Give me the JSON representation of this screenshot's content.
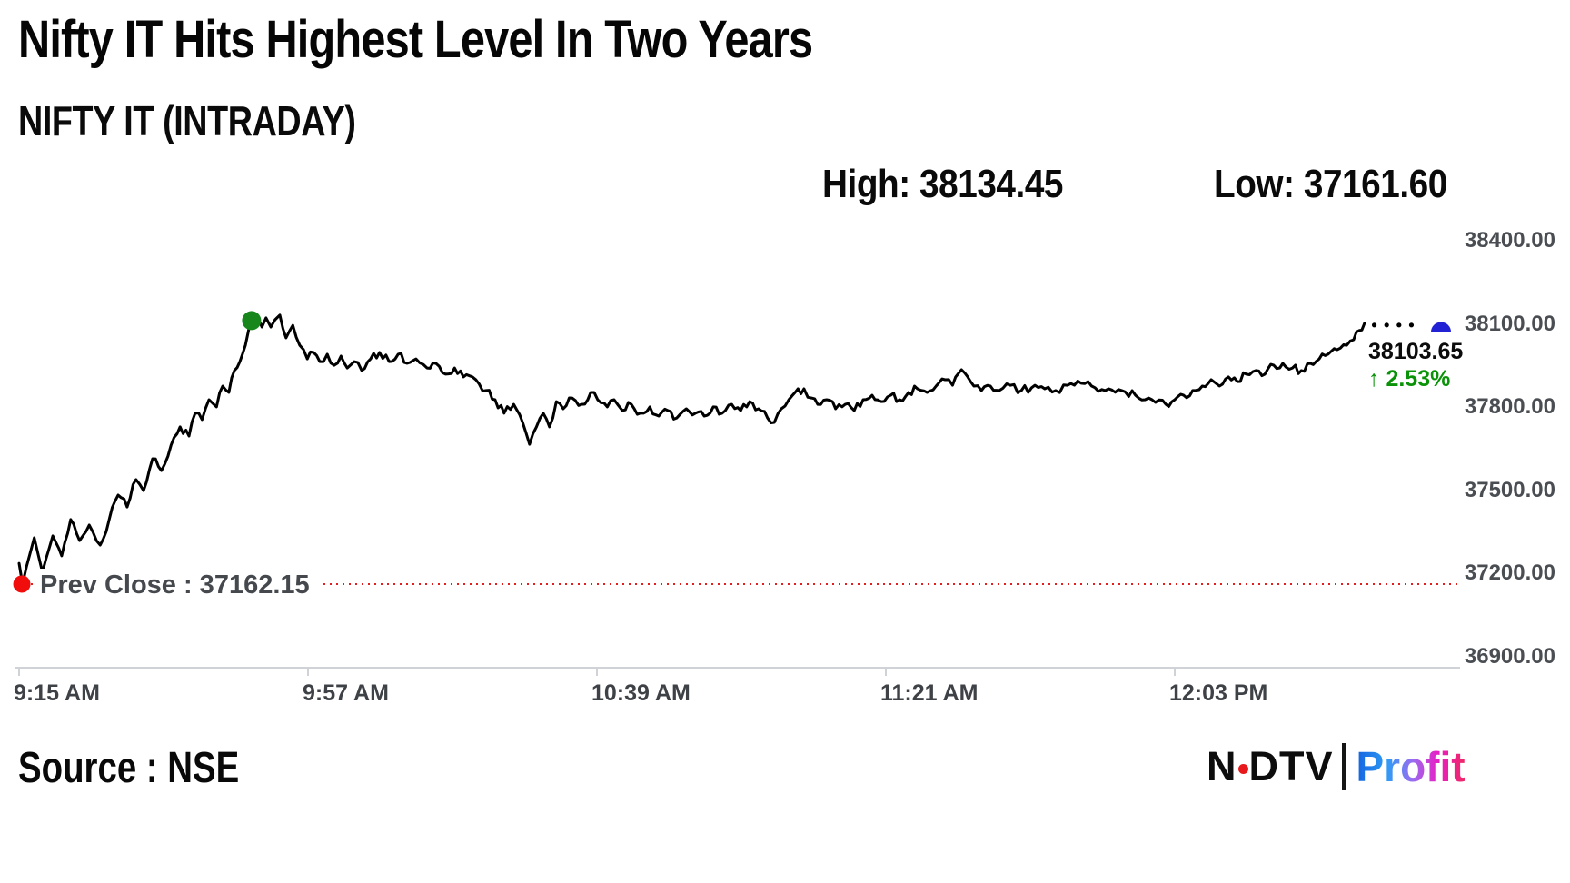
{
  "header": {
    "title": "Nifty IT Hits Highest Level In Two Years",
    "subtitle": "NIFTY IT (INTRADAY)",
    "high_text": "High: 38134.45",
    "low_text": "Low: 37161.60"
  },
  "footer": {
    "source": "Source : NSE",
    "logo": {
      "n": "N",
      "dtv": "DTV",
      "profit": "Profit"
    }
  },
  "chart_data": {
    "type": "line",
    "title": "NIFTY IT (INTRADAY)",
    "high": 38134.45,
    "low": 37161.6,
    "prev_close": {
      "label": "Prev Close : 37162.15",
      "value": 37162.15
    },
    "last": {
      "value": 38103.65,
      "text": "38103.65",
      "change_pct": 2.53,
      "change_pct_text": "↑ 2.53%"
    },
    "x_axis": {
      "tick_minutes": [
        0,
        42,
        84,
        126,
        168
      ],
      "tick_labels": [
        "9:15 AM",
        "9:57 AM",
        "10:39 AM",
        "11:21 AM",
        "12:03 PM"
      ],
      "range_minutes": [
        0,
        210
      ]
    },
    "y_axis": {
      "ticks": [
        38400,
        38100,
        37800,
        37500,
        37200,
        36900
      ],
      "tick_labels": [
        "38400.00",
        "38100.00",
        "37800.00",
        "37500.00",
        "37200.00",
        "36900.00"
      ],
      "range": [
        36900,
        38400
      ]
    },
    "legend": "none",
    "grid": "off",
    "colors": {
      "line": "#000000",
      "prev_close_line": "#e02020",
      "axis": "#cfd2d6",
      "open_dot": "#f20d0d",
      "high_dot": "#17871c",
      "last_dot": "#2222d4",
      "pct_text": "#0a9308"
    },
    "markers": {
      "open_dot": {
        "t": 0.4,
        "v": 37162.15
      },
      "high_dot": {
        "t": 33.8,
        "v": 38112
      },
      "last_dot": {
        "t": 206.7,
        "v": 38103.65
      },
      "trail_dots_t": [
        197.0,
        198.8,
        200.6,
        202.4
      ],
      "trail_dots_v": 38096
    },
    "series": [
      {
        "name": "NIFTY IT",
        "points": [
          [
            0,
            37237
          ],
          [
            0.5,
            37162
          ],
          [
            2.2,
            37329
          ],
          [
            3.4,
            37205
          ],
          [
            4.9,
            37336
          ],
          [
            6.2,
            37264
          ],
          [
            7.5,
            37395
          ],
          [
            8.8,
            37319
          ],
          [
            10.2,
            37375
          ],
          [
            11.8,
            37303
          ],
          [
            13.1,
            37395
          ],
          [
            14.4,
            37483
          ],
          [
            15.7,
            37440
          ],
          [
            17,
            37539
          ],
          [
            18.1,
            37499
          ],
          [
            19.4,
            37614
          ],
          [
            20.7,
            37571
          ],
          [
            22.1,
            37663
          ],
          [
            23.4,
            37729
          ],
          [
            24.7,
            37696
          ],
          [
            25.6,
            37778
          ],
          [
            26.6,
            37755
          ],
          [
            27.6,
            37827
          ],
          [
            28.7,
            37801
          ],
          [
            29.6,
            37876
          ],
          [
            30.5,
            37853
          ],
          [
            31.3,
            37932
          ],
          [
            32.1,
            37964
          ],
          [
            32.9,
            38023
          ],
          [
            33.4,
            38082
          ],
          [
            33.9,
            38109
          ],
          [
            34.6,
            38128
          ],
          [
            35.3,
            38089
          ],
          [
            35.9,
            38122
          ],
          [
            36.6,
            38089
          ],
          [
            37.2,
            38115
          ],
          [
            37.9,
            38132
          ],
          [
            38.8,
            38050
          ],
          [
            39.8,
            38095
          ],
          [
            40.8,
            38023
          ],
          [
            41.9,
            37974
          ],
          [
            42.8,
            37997
          ],
          [
            43.7,
            37964
          ],
          [
            44.8,
            37991
          ],
          [
            45.8,
            37951
          ],
          [
            46.8,
            37984
          ],
          [
            47.7,
            37941
          ],
          [
            48.7,
            37964
          ],
          [
            49.8,
            37932
          ],
          [
            51.1,
            37974
          ],
          [
            52.4,
            37997
          ],
          [
            53.8,
            37964
          ],
          [
            55.1,
            37991
          ],
          [
            56.4,
            37958
          ],
          [
            57.7,
            37974
          ],
          [
            59.3,
            37941
          ],
          [
            60.6,
            37958
          ],
          [
            62,
            37919
          ],
          [
            63.3,
            37941
          ],
          [
            64.6,
            37909
          ],
          [
            65.9,
            37909
          ],
          [
            67.9,
            37860
          ],
          [
            69.2,
            37827
          ],
          [
            70.5,
            37778
          ],
          [
            71.9,
            37810
          ],
          [
            73.2,
            37745
          ],
          [
            74.2,
            37666
          ],
          [
            75.2,
            37729
          ],
          [
            76.2,
            37778
          ],
          [
            77.1,
            37729
          ],
          [
            78.1,
            37820
          ],
          [
            79.1,
            37794
          ],
          [
            80.4,
            37833
          ],
          [
            81.8,
            37810
          ],
          [
            83.1,
            37853
          ],
          [
            84.1,
            37827
          ],
          [
            85.5,
            37801
          ],
          [
            86.5,
            37827
          ],
          [
            87.7,
            37788
          ],
          [
            89,
            37810
          ],
          [
            90.3,
            37778
          ],
          [
            91.7,
            37801
          ],
          [
            93,
            37768
          ],
          [
            94.3,
            37788
          ],
          [
            95.6,
            37761
          ],
          [
            97,
            37794
          ],
          [
            98.3,
            37778
          ],
          [
            99.6,
            37768
          ],
          [
            100.9,
            37801
          ],
          [
            102.2,
            37778
          ],
          [
            103.6,
            37810
          ],
          [
            104.9,
            37788
          ],
          [
            106.2,
            37820
          ],
          [
            107.5,
            37794
          ],
          [
            108.8,
            37761
          ],
          [
            109.8,
            37745
          ],
          [
            110.8,
            37794
          ],
          [
            111.9,
            37827
          ],
          [
            112.8,
            37853
          ],
          [
            114.1,
            37866
          ],
          [
            115.2,
            37833
          ],
          [
            116.1,
            37810
          ],
          [
            117.4,
            37827
          ],
          [
            118.7,
            37794
          ],
          [
            120.1,
            37810
          ],
          [
            121.4,
            37788
          ],
          [
            122.7,
            37827
          ],
          [
            124,
            37843
          ],
          [
            125.3,
            37820
          ],
          [
            126.7,
            37843
          ],
          [
            128,
            37827
          ],
          [
            129.3,
            37853
          ],
          [
            130.6,
            37866
          ],
          [
            132,
            37853
          ],
          [
            133.3,
            37876
          ],
          [
            134.6,
            37899
          ],
          [
            135.7,
            37879
          ],
          [
            137,
            37935
          ],
          [
            137.9,
            37909
          ],
          [
            138.8,
            37876
          ],
          [
            139.9,
            37860
          ],
          [
            141.2,
            37876
          ],
          [
            142.5,
            37860
          ],
          [
            144.1,
            37879
          ],
          [
            145.7,
            37860
          ],
          [
            147.2,
            37870
          ],
          [
            149.1,
            37866
          ],
          [
            150.7,
            37860
          ],
          [
            152.4,
            37879
          ],
          [
            154.4,
            37886
          ],
          [
            156.4,
            37870
          ],
          [
            158.4,
            37866
          ],
          [
            160.3,
            37860
          ],
          [
            162.3,
            37843
          ],
          [
            163.7,
            37827
          ],
          [
            165.2,
            37817
          ],
          [
            166.7,
            37810
          ],
          [
            168,
            37827
          ],
          [
            169.3,
            37843
          ],
          [
            170.6,
            37860
          ],
          [
            172,
            37876
          ],
          [
            173.3,
            37899
          ],
          [
            174.5,
            37876
          ],
          [
            175.8,
            37909
          ],
          [
            177.1,
            37892
          ],
          [
            178.4,
            37919
          ],
          [
            179.8,
            37932
          ],
          [
            181.1,
            37919
          ],
          [
            182.4,
            37951
          ],
          [
            183.7,
            37958
          ],
          [
            185.1,
            37941
          ],
          [
            186.4,
            37932
          ],
          [
            187.7,
            37958
          ],
          [
            189,
            37974
          ],
          [
            190.3,
            37991
          ],
          [
            191.6,
            38007
          ],
          [
            193,
            38023
          ],
          [
            194,
            38043
          ],
          [
            194.8,
            38076
          ],
          [
            195.6,
            38103.65
          ]
        ]
      }
    ]
  }
}
